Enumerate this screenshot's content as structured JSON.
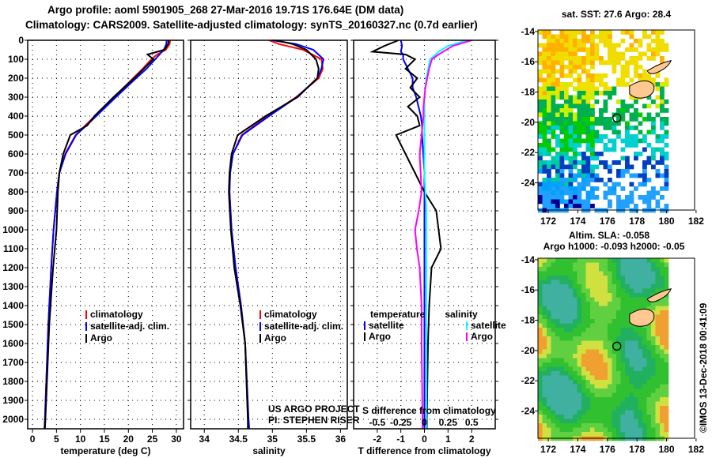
{
  "title_line1": "Argo profile: aoml 5901905_268 27-Mar-2016 19.71S 176.64E (DM data)",
  "title_line2": "Climatology: CARS2009. Satellite-adjusted climatology: synTS_20160327.nc (0.7d earlier)",
  "timestamp": "©IMOS 13-Dec-2018 00:41:09",
  "credit_line1": "US ARGO PROJECT",
  "credit_line2": "PI: STEPHEN RISER",
  "colors": {
    "climatology": "#ff0000",
    "satellite": "#0000ff",
    "argo": "#000000",
    "sat_salinity": "#00ffff",
    "argo_salinity": "#ff00ff"
  },
  "chart_data": [
    {
      "type": "line",
      "xlabel": "temperature (deg C)",
      "ylabel": "",
      "xlim": [
        -1,
        31.5
      ],
      "ylim": [
        2050,
        0
      ],
      "xticks": [
        "0",
        "5",
        "10",
        "15",
        "20",
        "25",
        "30"
      ],
      "xtick_values": [
        0,
        5,
        10,
        15,
        20,
        25,
        30
      ],
      "yticks": [
        "0",
        "100",
        "200",
        "300",
        "400",
        "500",
        "600",
        "700",
        "800",
        "900",
        "1000",
        "1100",
        "1200",
        "1300",
        "1400",
        "1500",
        "1600",
        "1700",
        "1800",
        "1900",
        "2000"
      ],
      "legend": [
        "climatology",
        "satellite-adj. clim.",
        "Argo"
      ],
      "depth": [
        0,
        20,
        50,
        75,
        100,
        150,
        200,
        300,
        400,
        450,
        500,
        600,
        700,
        800,
        1000,
        1200,
        1500,
        2000,
        2050
      ],
      "series": [
        {
          "name": "climatology",
          "color": "#ff0000",
          "values": [
            28.7,
            28.6,
            27.8,
            26.0,
            24.8,
            23.0,
            21.0,
            17.0,
            13.0,
            11.0,
            9.0,
            6.8,
            5.6,
            5.1,
            4.4,
            3.9,
            3.3,
            2.6,
            2.5
          ]
        },
        {
          "name": "satellite-adj. clim.",
          "color": "#0000ff",
          "values": [
            28.0,
            27.9,
            27.4,
            26.5,
            25.6,
            23.8,
            21.6,
            17.4,
            13.3,
            11.2,
            9.1,
            6.9,
            5.6,
            5.1,
            4.4,
            3.9,
            3.3,
            2.6,
            2.5
          ]
        },
        {
          "name": "Argo",
          "color": "#000000",
          "values": [
            28.4,
            28.3,
            27.5,
            24.0,
            25.2,
            23.2,
            21.2,
            16.9,
            12.9,
            11.4,
            7.9,
            6.4,
            5.6,
            5.3,
            5.0,
            4.3,
            3.5,
            2.7,
            2.6
          ]
        }
      ]
    },
    {
      "type": "line",
      "xlabel": "salinity",
      "xlim": [
        33.8,
        36.1
      ],
      "ylim": [
        2050,
        0
      ],
      "xticks": [
        "34",
        "34.5",
        "35",
        "35.5",
        "36"
      ],
      "xtick_values": [
        34,
        34.5,
        35,
        35.5,
        36
      ],
      "legend": [
        "climatology",
        "satellite-adj. clim.",
        "Argo"
      ],
      "depth": [
        0,
        20,
        50,
        100,
        150,
        200,
        300,
        400,
        500,
        600,
        700,
        800,
        1000,
        1200,
        1400,
        1600,
        2000,
        2050
      ],
      "series": [
        {
          "name": "climatology",
          "color": "#ff0000",
          "values": [
            34.95,
            35.1,
            35.45,
            35.72,
            35.74,
            35.68,
            35.35,
            34.93,
            34.55,
            34.42,
            34.38,
            34.37,
            34.4,
            34.46,
            34.54,
            34.6,
            34.64,
            34.65
          ]
        },
        {
          "name": "satellite-adj. clim.",
          "color": "#0000ff",
          "values": [
            35.0,
            35.35,
            35.6,
            35.75,
            35.72,
            35.66,
            35.36,
            34.95,
            34.56,
            34.42,
            34.38,
            34.37,
            34.4,
            34.46,
            34.54,
            34.6,
            34.65,
            34.66
          ]
        },
        {
          "name": "Argo",
          "color": "#000000",
          "values": [
            35.05,
            35.3,
            35.5,
            35.64,
            35.68,
            35.66,
            35.37,
            34.9,
            34.49,
            34.4,
            34.37,
            34.36,
            34.39,
            34.44,
            34.53,
            34.6,
            34.64,
            34.64
          ]
        }
      ]
    },
    {
      "type": "line",
      "xlabel": "T difference from climatology",
      "xlabel2": "S difference from climatology",
      "xlim": [
        -3,
        3
      ],
      "x2lim": [
        -0.75,
        0.75
      ],
      "ylim": [
        2050,
        0
      ],
      "xticks": [
        "-2",
        "-1",
        "0",
        "1",
        "2"
      ],
      "xtick_values": [
        -2,
        -1,
        0,
        1,
        2
      ],
      "x2ticks": [
        "-0.5",
        "-0.25",
        "0",
        "0.25",
        "0.5"
      ],
      "x2tick_values": [
        -0.5,
        -0.25,
        0,
        0.25,
        0.5
      ],
      "legend_temperature": {
        "title": "temperature",
        "items": [
          "satellite",
          "Argo"
        ]
      },
      "legend_salinity": {
        "title": "salinity",
        "items": [
          "satellite",
          "Argo"
        ]
      },
      "depth": [
        0,
        30,
        60,
        75,
        100,
        150,
        200,
        250,
        300,
        350,
        400,
        450,
        500,
        600,
        700,
        800,
        900,
        1000,
        1100,
        1200,
        1400,
        1600,
        2000,
        2050
      ],
      "series": [
        {
          "name": "T satellite",
          "axis": "T",
          "color": "#0000ff",
          "values": [
            -1.0,
            -0.95,
            -1.0,
            -0.9,
            -0.9,
            -0.7,
            -0.5,
            -0.5,
            -0.35,
            -0.25,
            -0.15,
            -0.1,
            -0.1,
            -0.05,
            0,
            0,
            0,
            0,
            0,
            0,
            0,
            0,
            0,
            0
          ]
        },
        {
          "name": "T Argo",
          "axis": "T",
          "color": "#000000",
          "values": [
            -1.1,
            -1.7,
            -2.2,
            -0.8,
            -0.4,
            -0.8,
            -0.3,
            -0.6,
            -0.2,
            -0.7,
            -0.3,
            -0.2,
            -1.2,
            -0.8,
            -0.4,
            0,
            0.5,
            0.6,
            0.7,
            0.3,
            0.2,
            0.15,
            0.1,
            0.1
          ]
        },
        {
          "name": "S satellite",
          "axis": "S",
          "color": "#00ffff",
          "values": [
            0.45,
            0.25,
            0.15,
            0.12,
            0.06,
            0.04,
            0.02,
            0.01,
            0,
            0,
            0,
            0,
            0,
            0,
            0,
            0.01,
            0.02,
            0.02,
            0.02,
            0.02,
            0.02,
            0.02,
            0.02,
            0.02
          ]
        },
        {
          "name": "S Argo",
          "axis": "S",
          "color": "#ff00ff",
          "values": [
            0.5,
            0.3,
            0.2,
            0.15,
            0.08,
            0.05,
            0.03,
            0.01,
            0,
            -0.01,
            -0.01,
            -0.02,
            -0.03,
            -0.05,
            -0.04,
            -0.03,
            -0.06,
            -0.1,
            -0.08,
            -0.05,
            -0.03,
            -0.03,
            -0.02,
            -0.02
          ]
        }
      ]
    },
    {
      "type": "heatmap",
      "title": "sat. SST: 27.6 Argo: 28.4",
      "xlim": [
        171.3,
        181.9
      ],
      "ylim": [
        -25.8,
        -13.9
      ],
      "xticks": [
        "172",
        "174",
        "176",
        "178",
        "180",
        "182"
      ],
      "xtick_values": [
        172,
        174,
        176,
        178,
        180,
        182
      ],
      "yticks": [
        "-14",
        "-16",
        "-18",
        "-20",
        "-22",
        "-24"
      ],
      "ytick_values": [
        -14,
        -16,
        -18,
        -20,
        -22,
        -24
      ],
      "argo_position": {
        "lon": 176.64,
        "lat": -19.71
      }
    },
    {
      "type": "heatmap",
      "title": "Altim. SLA: -0.058",
      "subtitle": "Argo h1000: -0.093 h2000: -0.05",
      "xlim": [
        171.3,
        181.9
      ],
      "ylim": [
        -25.8,
        -13.9
      ],
      "xticks": [
        "172",
        "174",
        "176",
        "178",
        "180",
        "182"
      ],
      "xtick_values": [
        172,
        174,
        176,
        178,
        180,
        182
      ],
      "yticks": [
        "-14",
        "-16",
        "-18",
        "-20",
        "-22",
        "-24"
      ],
      "ytick_values": [
        -14,
        -16,
        -18,
        -20,
        -22,
        -24
      ],
      "argo_position": {
        "lon": 176.64,
        "lat": -19.71
      }
    }
  ]
}
